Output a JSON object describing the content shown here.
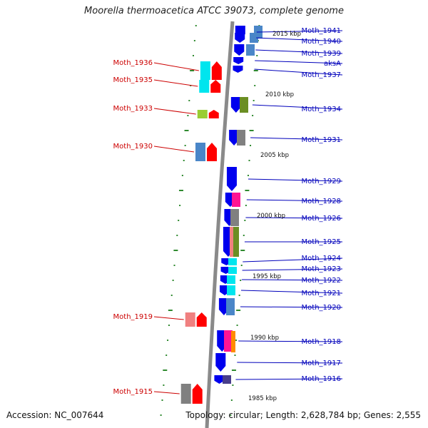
{
  "title": "Moorella thermoacetica ATCC 39073, complete genome",
  "accession": "Accession: NC_007644",
  "topology": "Topology: circular; Length: 2,628,784 bp; Genes: 2,555",
  "colors": {
    "backbone": "#8a8a8a",
    "tick": "#2f8a2f",
    "label_forward": "#cc0000",
    "label_reverse": "#0000bb"
  },
  "scale_labels": [
    {
      "name": "scale-2015kbp",
      "text": "2015 kbp"
    },
    {
      "name": "scale-2010kbp",
      "text": "2010 kbp"
    },
    {
      "name": "scale-2005kbp",
      "text": "2005 kbp"
    },
    {
      "name": "scale-2000kbp",
      "text": "2000 kbp"
    },
    {
      "name": "scale-1995kbp",
      "text": "1995 kbp"
    },
    {
      "name": "scale-1990kbp",
      "text": "1990 kbp"
    },
    {
      "name": "scale-1985kbp",
      "text": "1985 kbp"
    }
  ],
  "genes_forward": [
    {
      "name": "Moth_1936",
      "color": "#ff0000"
    },
    {
      "name": "Moth_1935",
      "color": "#ff0000"
    },
    {
      "name": "Moth_1933",
      "color": "#ff0000"
    },
    {
      "name": "Moth_1930",
      "color": "#ff0000"
    },
    {
      "name": "Moth_1919",
      "color": "#ff0000"
    },
    {
      "name": "Moth_1915",
      "color": "#ff0000"
    }
  ],
  "genes_reverse": [
    {
      "name": "Moth_1941",
      "color": "#0000ee"
    },
    {
      "name": "Moth_1940",
      "color": "#0000ee"
    },
    {
      "name": "Moth_1939",
      "color": "#0000ee"
    },
    {
      "name": "aksA",
      "color": "#0000ee"
    },
    {
      "name": "Moth_1937",
      "color": "#0000ee"
    },
    {
      "name": "Moth_1934",
      "color": "#0000ee"
    },
    {
      "name": "Moth_1931",
      "color": "#0000ee"
    },
    {
      "name": "Moth_1929",
      "color": "#0000ee"
    },
    {
      "name": "Moth_1928",
      "color": "#0000ee"
    },
    {
      "name": "Moth_1926",
      "color": "#0000ee"
    },
    {
      "name": "Moth_1925",
      "color": "#0000ee"
    },
    {
      "name": "Moth_1924",
      "color": "#0000ee"
    },
    {
      "name": "Moth_1923",
      "color": "#0000ee"
    },
    {
      "name": "Moth_1922",
      "color": "#0000ee"
    },
    {
      "name": "Moth_1921",
      "color": "#0000ee"
    },
    {
      "name": "Moth_1920",
      "color": "#0000ee"
    },
    {
      "name": "Moth_1918",
      "color": "#0000ee"
    },
    {
      "name": "Moth_1917",
      "color": "#0000ee"
    },
    {
      "name": "Moth_1916",
      "color": "#0000ee"
    }
  ],
  "cog_colors": [
    "#4a86c8",
    "#00e5ee",
    "#ff1493",
    "#6b8e23",
    "#808080",
    "#f08080",
    "#ff8c00",
    "#9acd32",
    "#483d8b"
  ]
}
